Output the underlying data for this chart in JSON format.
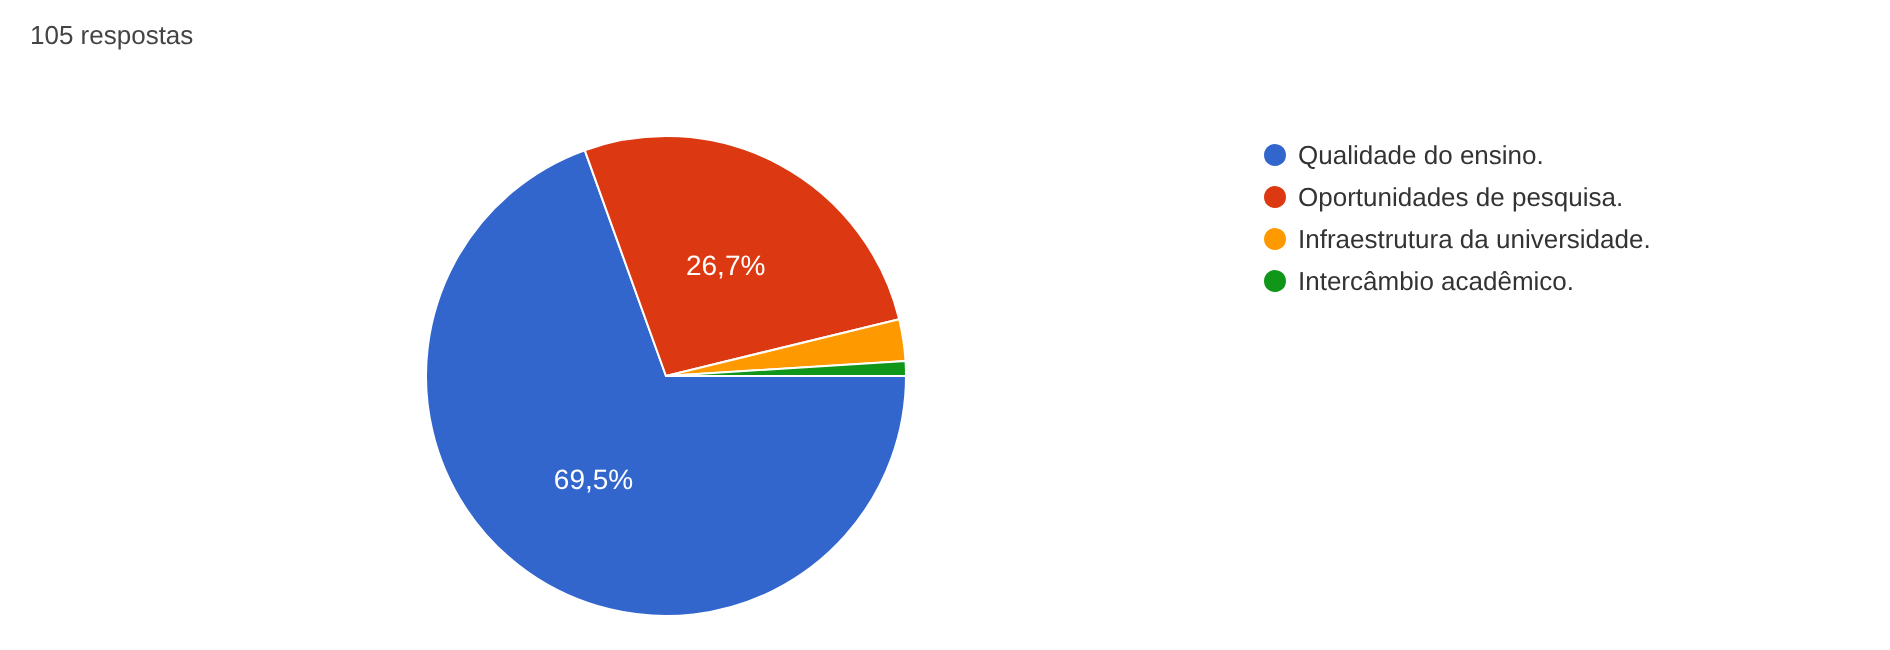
{
  "chart_data": {
    "type": "pie",
    "title": "105 respostas",
    "categories": [
      "Qualidade do ensino.",
      "Oportunidades de pesquisa.",
      "Infraestrutura da universidade.",
      "Intercâmbio acadêmico."
    ],
    "values": [
      69.5,
      26.7,
      2.8,
      1.0
    ],
    "colors": [
      "#3366cc",
      "#dc3912",
      "#ff9900",
      "#109618"
    ],
    "value_labels": [
      "69,5%",
      "26,7%",
      null,
      null
    ],
    "legend": "right"
  }
}
